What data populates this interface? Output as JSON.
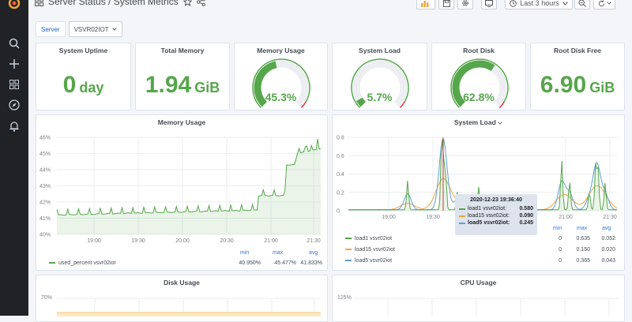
{
  "breadcrumb": {
    "text": "Server Status / System Metrics"
  },
  "toolbar": {
    "time_range": "Last 3 hours"
  },
  "variable": {
    "label": "Server",
    "value": "VSVR02IOT"
  },
  "stats": {
    "uptime": {
      "title": "System Uptime",
      "value": "0",
      "unit": "day"
    },
    "memory_total": {
      "title": "Total Memory",
      "value": "1.94",
      "unit": "GiB"
    },
    "memory_usage": {
      "title": "Memory Usage",
      "value": "45.3%",
      "percent": 45.3
    },
    "system_load": {
      "title": "System Load",
      "value": "5.7%",
      "percent": 5.7
    },
    "root_disk": {
      "title": "Root Disk",
      "value": "62.8%",
      "percent": 62.8
    },
    "root_disk_free": {
      "title": "Root Disk Free",
      "value": "6.90",
      "unit": "GiB"
    }
  },
  "colors": {
    "green": "#56a64b",
    "red": "#e02f44",
    "blue": "#5ca0d6",
    "orange": "#f2a33a",
    "axis": "#7b8087",
    "tooltip_bg": "#dde4ed"
  },
  "memory_chart": {
    "title": "Memory Usage",
    "y_ticks": [
      "46%",
      "45%",
      "44%",
      "43%",
      "42%",
      "41%",
      "40%"
    ],
    "x_ticks": [
      "19:00",
      "19:30",
      "20:00",
      "20:30",
      "21:00",
      "21:30"
    ],
    "legend": {
      "name": "used_percent vsvr02iot",
      "min_label": "min",
      "max_label": "max",
      "avg_label": "avg",
      "min": "40.950%",
      "max": "45.477%",
      "avg": "41.833%"
    }
  },
  "load_chart": {
    "title": "System Load",
    "y_ticks": [
      "0.8",
      "0.6",
      "0.4",
      "0.2",
      "0"
    ],
    "x_ticks": [
      "19:00",
      "19:30",
      "21:00",
      "21:30"
    ],
    "legend_head": {
      "min": "min",
      "max": "max",
      "avg": "avg"
    },
    "series": [
      {
        "name": "load1 vsvr02iot",
        "min": "0",
        "max": "0.635",
        "avg": "0.052"
      },
      {
        "name": "load15 vsvr02iot",
        "min": "0",
        "max": "0.150",
        "avg": "0.020"
      },
      {
        "name": "load5 vsvr02iot",
        "min": "0",
        "max": "0.365",
        "avg": "0.043"
      }
    ],
    "tooltip": {
      "time": "2020-12-23 19:36:40",
      "rows": [
        {
          "name": "load1 vsvr02iot:",
          "value": "0.580"
        },
        {
          "name": "load15 vsvr02iot:",
          "value": "0.090"
        },
        {
          "name": "load5 vsvr02iot:",
          "value": "0.245"
        }
      ]
    }
  },
  "disk_chart": {
    "title": "Disk Usage",
    "y_top": "70%"
  },
  "cpu_chart": {
    "title": "CPU Usage",
    "y_top": "125%"
  }
}
